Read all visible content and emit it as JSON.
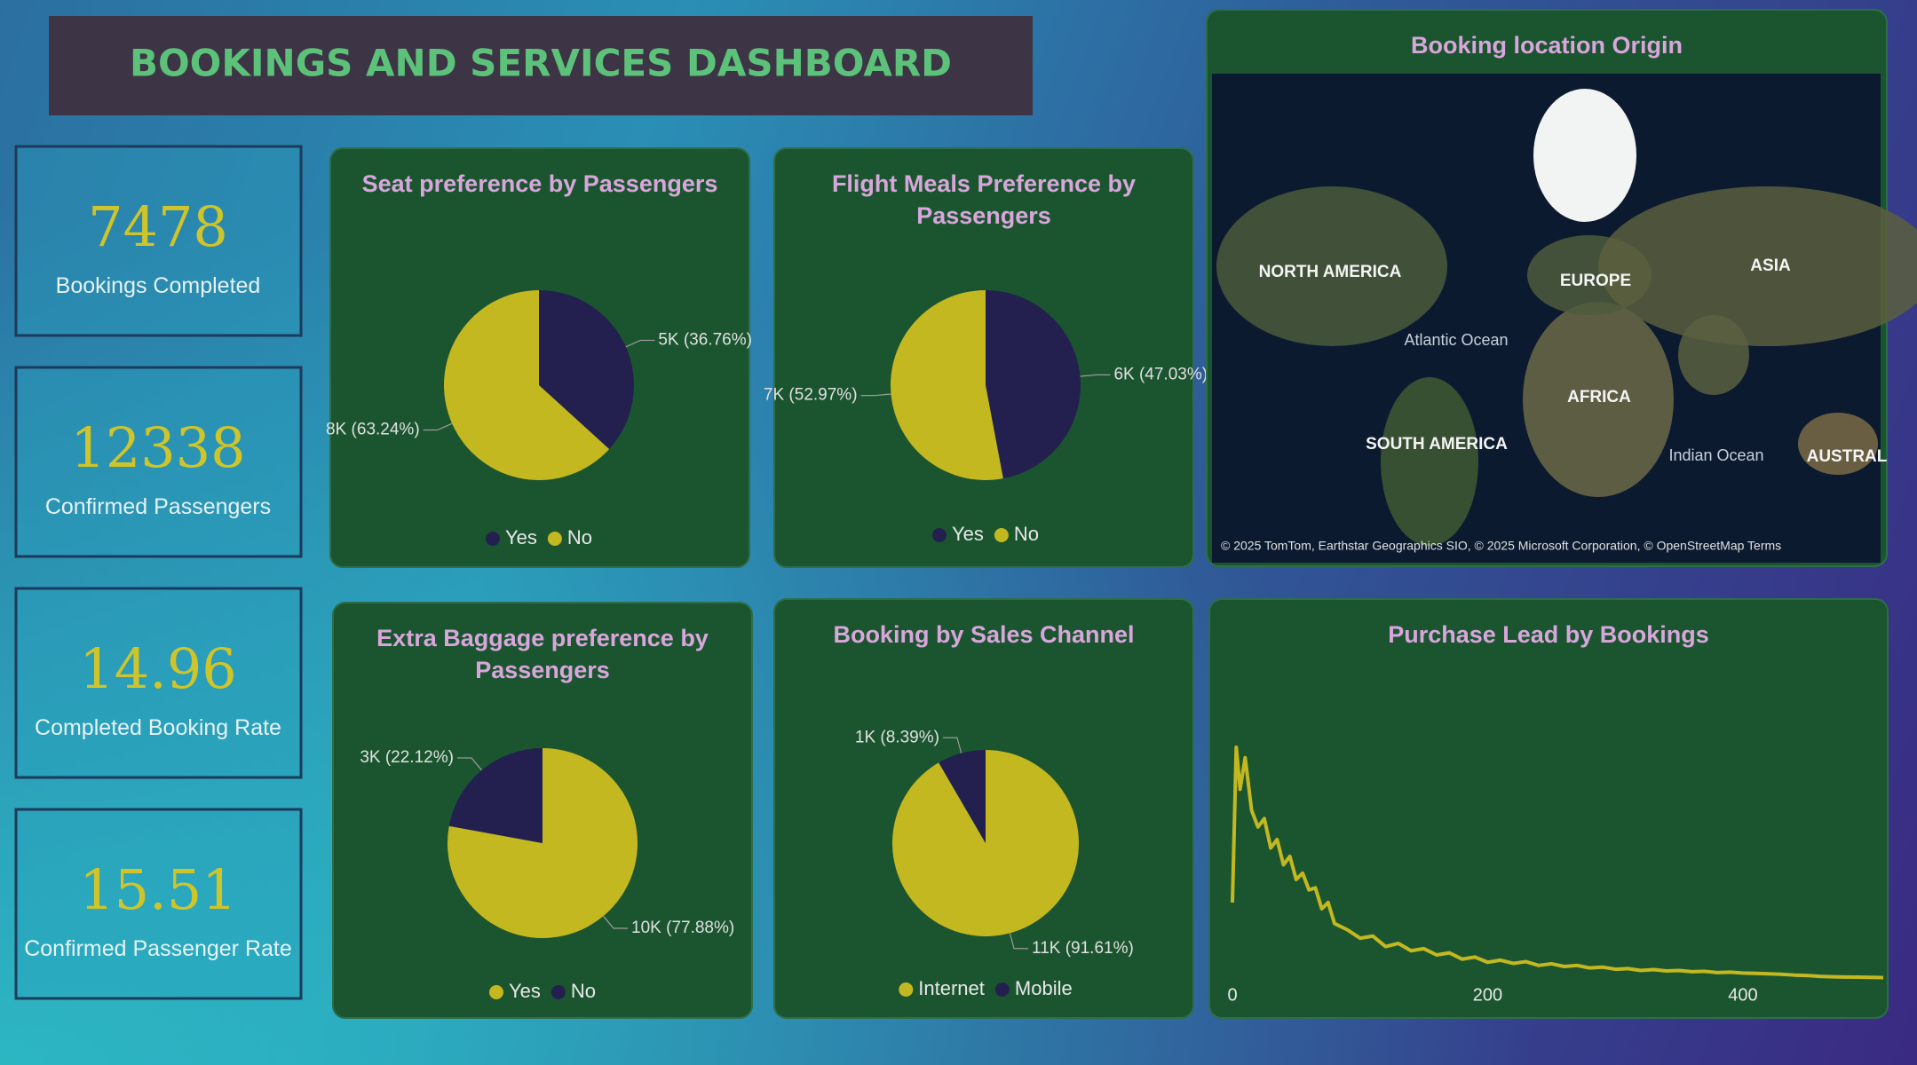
{
  "title": "BOOKINGS AND SERVICES DASHBOARD",
  "kpis": [
    {
      "value": 7478,
      "label": "Bookings Completed"
    },
    {
      "value": 12338,
      "label": "Confirmed Passengers"
    },
    {
      "value": 14.96,
      "label": "Completed Booking Rate"
    },
    {
      "value": 15.51,
      "label": "Confirmed Passenger Rate"
    }
  ],
  "chart_data": [
    {
      "type": "pie",
      "title": "Seat preference by Passengers",
      "categories": [
        "Yes",
        "No"
      ],
      "colors": [
        "#232050",
        "#c4b820"
      ],
      "values": [
        36.76,
        63.24
      ],
      "value_labels": [
        "5K (36.76%)",
        "8K (63.24%)"
      ]
    },
    {
      "type": "pie",
      "title": "Flight Meals Preference by Passengers",
      "categories": [
        "Yes",
        "No"
      ],
      "colors": [
        "#232050",
        "#c4b820"
      ],
      "values": [
        47.03,
        52.97
      ],
      "value_labels": [
        "6K (47.03%)",
        "7K (52.97%)"
      ]
    },
    {
      "type": "pie",
      "title": "Extra Baggage preference by Passengers",
      "categories": [
        "Yes",
        "No"
      ],
      "colors": [
        "#c4b820",
        "#232050"
      ],
      "values": [
        77.88,
        22.12
      ],
      "value_labels": [
        "10K (77.88%)",
        "3K (22.12%)"
      ]
    },
    {
      "type": "pie",
      "title": "Booking by Sales Channel",
      "categories": [
        "Internet",
        "Mobile"
      ],
      "colors": [
        "#c4b820",
        "#232050"
      ],
      "values": [
        91.61,
        8.39
      ],
      "value_labels": [
        "11K (91.61%)",
        "1K (8.39%)"
      ]
    },
    {
      "type": "map",
      "title": "Booking location Origin",
      "labels": [
        "NORTH AMERICA",
        "EUROPE",
        "ASIA",
        "Atlantic Ocean",
        "AFRICA",
        "SOUTH AMERICA",
        "Indian Ocean",
        "AUSTRAL"
      ],
      "attribution": "© 2025 TomTom, Earthstar Geographics SIO, © 2025 Microsoft Corporation, © OpenStreetMap  Terms"
    },
    {
      "type": "line",
      "title": "Purchase Lead by Bookings",
      "color": "#c4b820",
      "x": [
        0,
        3,
        6,
        10,
        15,
        20,
        25,
        30,
        35,
        40,
        45,
        50,
        55,
        60,
        65,
        70,
        75,
        80,
        90,
        100,
        110,
        120,
        130,
        140,
        150,
        160,
        170,
        180,
        190,
        200,
        210,
        220,
        230,
        240,
        250,
        260,
        270,
        280,
        290,
        300,
        310,
        320,
        330,
        340,
        350,
        360,
        370,
        380,
        390,
        400,
        410,
        420,
        430,
        440,
        450,
        460,
        470,
        480,
        490,
        500,
        510
      ],
      "values": [
        360,
        1100,
        900,
        1050,
        800,
        720,
        760,
        620,
        660,
        540,
        580,
        470,
        500,
        420,
        430,
        330,
        360,
        260,
        230,
        190,
        200,
        150,
        165,
        130,
        140,
        110,
        120,
        90,
        100,
        75,
        85,
        70,
        78,
        60,
        68,
        55,
        60,
        48,
        52,
        42,
        45,
        36,
        40,
        34,
        36,
        30,
        32,
        26,
        28,
        24,
        22,
        20,
        18,
        14,
        12,
        8,
        6,
        5,
        4,
        3,
        2
      ],
      "xlim": [
        0,
        510
      ],
      "xticks": [
        0,
        200,
        400
      ]
    }
  ]
}
